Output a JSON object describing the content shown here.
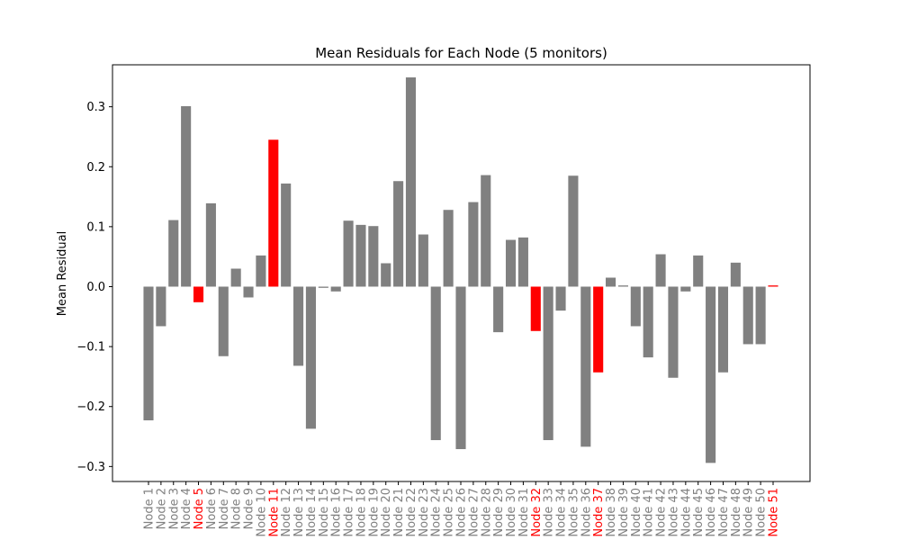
{
  "chart_data": {
    "type": "bar",
    "title": "Mean Residuals for Each Node (5 monitors)",
    "xlabel": "",
    "ylabel": "Mean Residual",
    "ylim": [
      -0.325,
      0.37
    ],
    "yticks": [
      -0.3,
      -0.2,
      -0.1,
      0.0,
      0.1,
      0.2,
      0.3
    ],
    "ytick_labels": [
      "−0.3",
      "−0.2",
      "−0.1",
      "0.0",
      "0.1",
      "0.2",
      "0.3"
    ],
    "grid": false,
    "categories": [
      "Node 1",
      "Node 2",
      "Node 3",
      "Node 4",
      "Node 5",
      "Node 6",
      "Node 7",
      "Node 8",
      "Node 9",
      "Node 10",
      "Node 11",
      "Node 12",
      "Node 13",
      "Node 14",
      "Node 15",
      "Node 16",
      "Node 17",
      "Node 18",
      "Node 19",
      "Node 20",
      "Node 21",
      "Node 22",
      "Node 23",
      "Node 24",
      "Node 25",
      "Node 26",
      "Node 27",
      "Node 28",
      "Node 29",
      "Node 30",
      "Node 31",
      "Node 32",
      "Node 33",
      "Node 34",
      "Node 35",
      "Node 36",
      "Node 37",
      "Node 38",
      "Node 39",
      "Node 40",
      "Node 41",
      "Node 42",
      "Node 43",
      "Node 44",
      "Node 45",
      "Node 46",
      "Node 47",
      "Node 48",
      "Node 49",
      "Node 50",
      "Node 51"
    ],
    "values": [
      -0.223,
      -0.066,
      0.111,
      0.301,
      -0.026,
      0.139,
      -0.116,
      0.03,
      -0.018,
      0.052,
      0.245,
      0.172,
      -0.132,
      -0.237,
      -0.002,
      -0.008,
      0.11,
      0.103,
      0.101,
      0.039,
      0.176,
      0.349,
      0.087,
      -0.256,
      0.128,
      -0.271,
      0.141,
      0.186,
      -0.076,
      0.078,
      0.082,
      -0.074,
      -0.256,
      -0.04,
      0.185,
      -0.267,
      -0.143,
      0.015,
      0.002,
      -0.066,
      -0.118,
      0.054,
      -0.152,
      -0.008,
      0.052,
      -0.294,
      -0.143,
      0.04,
      -0.096,
      -0.096,
      0.002
    ],
    "highlighted": [
      "Node 5",
      "Node 11",
      "Node 32",
      "Node 37",
      "Node 51"
    ],
    "colors": {
      "bar": "#808080",
      "highlight": "#ff0000",
      "label": "#808080",
      "label_highlight": "#ff0000"
    }
  }
}
